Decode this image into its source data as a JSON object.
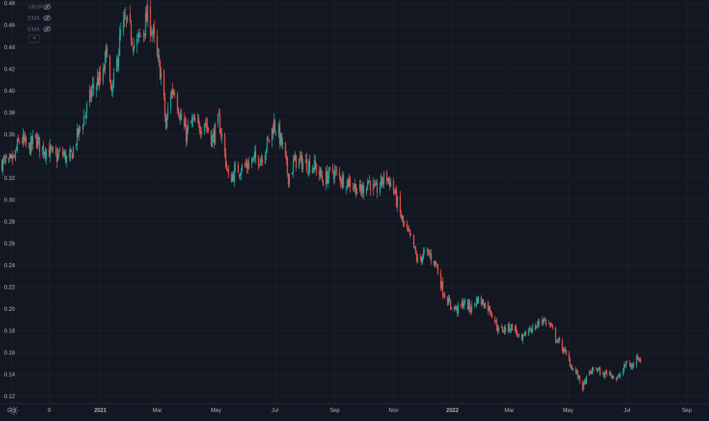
{
  "legend": {
    "indicators": [
      {
        "label": "VRVP",
        "icon": "eye-crossed-icon"
      },
      {
        "label": "EMA",
        "icon": "eye-crossed-icon"
      },
      {
        "label": "EMA",
        "icon": "eye-crossed-icon"
      }
    ],
    "collapse_label": "^"
  },
  "colors": {
    "background": "#131722",
    "grid": "#1e222d",
    "up": "#26a69a",
    "down": "#ef5350",
    "text": "#b2b5be",
    "muted": "#5d6170"
  },
  "chart_data": {
    "type": "candlestick",
    "y_ticks": [
      "0.48",
      "0.46",
      "0.44",
      "0.42",
      "0.40",
      "0.38",
      "0.36",
      "0.34",
      "0.32",
      "0.30",
      "0.28",
      "0.26",
      "0.24",
      "0.22",
      "0.20",
      "0.18",
      "0.16",
      "0.14",
      "0.12"
    ],
    "x_ticks": [
      "Oct",
      "9",
      "2021",
      "Mar",
      "May",
      "Jul",
      "Sep",
      "Nov",
      "2022",
      "Mar",
      "May",
      "Jul",
      "Sep"
    ],
    "x_tick_bold": [
      "2021",
      "2022"
    ],
    "ylim": [
      0.113,
      0.483
    ],
    "x_range": [
      "2020-09-19",
      "2022-09-24"
    ],
    "x_tick_dates": [
      "2020-10-01",
      "2020-11-09",
      "2021-01-01",
      "2021-03-01",
      "2021-05-01",
      "2021-07-01",
      "2021-09-01",
      "2021-11-01",
      "2022-01-01",
      "2022-03-01",
      "2022-05-01",
      "2022-07-01",
      "2022-09-01"
    ],
    "series_start_date": "2020-09-21",
    "close_path": [
      [
        "2020-09-21",
        0.334
      ],
      [
        "2020-09-28",
        0.331
      ],
      [
        "2020-10-04",
        0.339
      ],
      [
        "2020-10-10",
        0.358
      ],
      [
        "2020-10-18",
        0.346
      ],
      [
        "2020-10-26",
        0.356
      ],
      [
        "2020-11-01",
        0.347
      ],
      [
        "2020-11-08",
        0.346
      ],
      [
        "2020-11-15",
        0.338
      ],
      [
        "2020-11-22",
        0.343
      ],
      [
        "2020-11-30",
        0.335
      ],
      [
        "2020-12-06",
        0.352
      ],
      [
        "2020-12-12",
        0.368
      ],
      [
        "2020-12-18",
        0.383
      ],
      [
        "2020-12-24",
        0.402
      ],
      [
        "2020-12-30",
        0.41
      ],
      [
        "2021-01-03",
        0.407
      ],
      [
        "2021-01-08",
        0.44
      ],
      [
        "2021-01-12",
        0.393
      ],
      [
        "2021-01-17",
        0.418
      ],
      [
        "2021-01-22",
        0.452
      ],
      [
        "2021-01-27",
        0.463
      ],
      [
        "2021-02-02",
        0.452
      ],
      [
        "2021-02-06",
        0.44
      ],
      [
        "2021-02-13",
        0.452
      ],
      [
        "2021-02-19",
        0.468
      ],
      [
        "2021-02-24",
        0.455
      ],
      [
        "2021-03-01",
        0.429
      ],
      [
        "2021-03-06",
        0.412
      ],
      [
        "2021-03-10",
        0.365
      ],
      [
        "2021-03-14",
        0.397
      ],
      [
        "2021-03-19",
        0.402
      ],
      [
        "2021-03-25",
        0.376
      ],
      [
        "2021-03-31",
        0.36
      ],
      [
        "2021-04-06",
        0.371
      ],
      [
        "2021-04-13",
        0.366
      ],
      [
        "2021-04-19",
        0.373
      ],
      [
        "2021-04-27",
        0.355
      ],
      [
        "2021-05-04",
        0.372
      ],
      [
        "2021-05-09",
        0.348
      ],
      [
        "2021-05-14",
        0.318
      ],
      [
        "2021-05-22",
        0.327
      ],
      [
        "2021-06-03",
        0.332
      ],
      [
        "2021-06-10",
        0.337
      ],
      [
        "2021-06-17",
        0.339
      ],
      [
        "2021-06-25",
        0.355
      ],
      [
        "2021-06-30",
        0.37
      ],
      [
        "2021-07-04",
        0.363
      ],
      [
        "2021-07-09",
        0.348
      ],
      [
        "2021-07-15",
        0.321
      ],
      [
        "2021-07-22",
        0.336
      ],
      [
        "2021-08-03",
        0.333
      ],
      [
        "2021-08-12",
        0.33
      ],
      [
        "2021-08-20",
        0.318
      ],
      [
        "2021-08-30",
        0.326
      ],
      [
        "2021-09-08",
        0.319
      ],
      [
        "2021-09-17",
        0.316
      ],
      [
        "2021-09-28",
        0.307
      ],
      [
        "2021-10-06",
        0.318
      ],
      [
        "2021-10-13",
        0.307
      ],
      [
        "2021-10-24",
        0.322
      ],
      [
        "2021-10-31",
        0.313
      ],
      [
        "2021-11-05",
        0.296
      ],
      [
        "2021-11-12",
        0.275
      ],
      [
        "2021-11-20",
        0.262
      ],
      [
        "2021-11-26",
        0.243
      ],
      [
        "2021-12-02",
        0.25
      ],
      [
        "2021-12-08",
        0.25
      ],
      [
        "2021-12-15",
        0.241
      ],
      [
        "2021-12-22",
        0.217
      ],
      [
        "2021-12-29",
        0.204
      ],
      [
        "2022-01-06",
        0.199
      ],
      [
        "2022-01-13",
        0.206
      ],
      [
        "2022-01-20",
        0.2
      ],
      [
        "2022-01-27",
        0.209
      ],
      [
        "2022-02-03",
        0.205
      ],
      [
        "2022-02-10",
        0.198
      ],
      [
        "2022-02-18",
        0.18
      ],
      [
        "2022-02-26",
        0.182
      ],
      [
        "2022-03-06",
        0.184
      ],
      [
        "2022-03-13",
        0.168
      ],
      [
        "2022-03-20",
        0.181
      ],
      [
        "2022-03-28",
        0.183
      ],
      [
        "2022-04-04",
        0.191
      ],
      [
        "2022-04-12",
        0.185
      ],
      [
        "2022-04-19",
        0.172
      ],
      [
        "2022-04-26",
        0.163
      ],
      [
        "2022-05-04",
        0.148
      ],
      [
        "2022-05-10",
        0.14
      ],
      [
        "2022-05-16",
        0.128
      ],
      [
        "2022-05-22",
        0.14
      ],
      [
        "2022-05-30",
        0.146
      ],
      [
        "2022-06-06",
        0.139
      ],
      [
        "2022-06-12",
        0.143
      ],
      [
        "2022-06-20",
        0.135
      ],
      [
        "2022-06-26",
        0.142
      ],
      [
        "2022-07-01",
        0.152
      ],
      [
        "2022-07-06",
        0.146
      ],
      [
        "2022-07-12",
        0.158
      ],
      [
        "2022-07-15",
        0.153
      ]
    ]
  }
}
